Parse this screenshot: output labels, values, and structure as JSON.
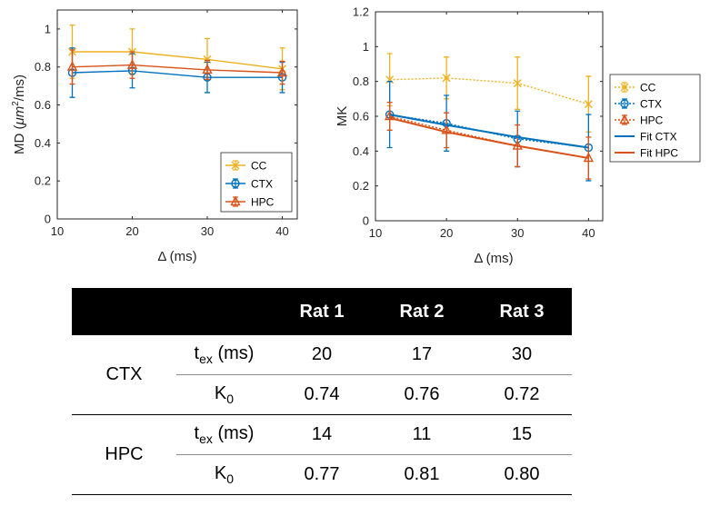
{
  "chart_data": [
    {
      "type": "line",
      "title": "",
      "xlabel": "Δ (ms)",
      "ylabel": "MD (μm²/ms)",
      "ylabel_prefix": "MD (",
      "ylabel_unit": "μm",
      "ylabel_sup": "2",
      "ylabel_suffix": "/ms)",
      "xlim": [
        10,
        42
      ],
      "ylim": [
        0,
        1.1
      ],
      "xticks": [
        10,
        20,
        30,
        40
      ],
      "yticks": [
        0,
        0.2,
        0.4,
        0.6,
        0.8,
        1
      ],
      "xtick_labels": [
        "10",
        "20",
        "30",
        "40"
      ],
      "ytick_labels": [
        "0",
        "0.2",
        "0.4",
        "0.6",
        "0.8",
        "1"
      ],
      "legend_position": "bottom-right",
      "x": [
        12,
        20,
        30,
        40
      ],
      "series": [
        {
          "name": "CC",
          "marker": "x",
          "style": "solid",
          "color": "#EDB120",
          "values": [
            0.88,
            0.88,
            0.84,
            0.79
          ],
          "err": [
            0.14,
            0.12,
            0.11,
            0.11
          ]
        },
        {
          "name": "CTX",
          "marker": "o",
          "style": "solid",
          "color": "#0072BD",
          "values": [
            0.77,
            0.78,
            0.745,
            0.745
          ],
          "err": [
            0.13,
            0.09,
            0.08,
            0.08
          ]
        },
        {
          "name": "HPC",
          "marker": "triangle",
          "style": "solid",
          "color": "#D95319",
          "values": [
            0.8,
            0.81,
            0.785,
            0.77
          ],
          "err": [
            0.09,
            0.07,
            0.05,
            0.06
          ]
        }
      ]
    },
    {
      "type": "line",
      "title": "",
      "xlabel": "Δ (ms)",
      "ylabel": "MK",
      "xlim": [
        10,
        42
      ],
      "ylim": [
        0,
        1.2
      ],
      "xticks": [
        10,
        20,
        30,
        40
      ],
      "yticks": [
        0,
        0.2,
        0.4,
        0.6,
        0.8,
        1,
        1.2
      ],
      "xtick_labels": [
        "10",
        "20",
        "30",
        "40"
      ],
      "ytick_labels": [
        "0",
        "0.2",
        "0.4",
        "0.6",
        "0.8",
        "1",
        "1.2"
      ],
      "legend_position": "outside-right",
      "x": [
        12,
        20,
        30,
        40
      ],
      "series": [
        {
          "name": "CC",
          "marker": "x",
          "style": "dotted",
          "color": "#EDB120",
          "values": [
            0.81,
            0.82,
            0.79,
            0.67
          ],
          "err": [
            0.15,
            0.12,
            0.15,
            0.16
          ]
        },
        {
          "name": "CTX",
          "marker": "o",
          "style": "dotted",
          "color": "#0072BD",
          "values": [
            0.61,
            0.56,
            0.47,
            0.42
          ],
          "err": [
            0.19,
            0.16,
            0.16,
            0.19
          ]
        },
        {
          "name": "HPC",
          "marker": "triangle",
          "style": "dotted",
          "color": "#D95319",
          "values": [
            0.6,
            0.52,
            0.43,
            0.36
          ],
          "err": [
            0.08,
            0.1,
            0.12,
            0.12
          ]
        },
        {
          "name": "Fit CTX",
          "marker": "none",
          "style": "solid",
          "color": "#0072BD",
          "values": [
            0.61,
            0.55,
            0.48,
            0.42
          ],
          "err": []
        },
        {
          "name": "Fit HPC",
          "marker": "none",
          "style": "solid",
          "color": "#D95319",
          "values": [
            0.59,
            0.51,
            0.43,
            0.36
          ],
          "err": []
        }
      ]
    },
    {
      "type": "table",
      "columns": [
        "",
        "",
        "Rat 1",
        "Rat 2",
        "Rat 3"
      ],
      "groups": [
        {
          "name": "CTX",
          "rows": [
            {
              "param_base": "t",
              "param_sub": "ex",
              "param_suffix": " (ms)",
              "values": [
                "20",
                "17",
                "30"
              ]
            },
            {
              "param_base": "K",
              "param_sub": "0",
              "param_suffix": "",
              "values": [
                "0.74",
                "0.76",
                "0.72"
              ]
            }
          ]
        },
        {
          "name": "HPC",
          "rows": [
            {
              "param_base": "t",
              "param_sub": "ex",
              "param_suffix": " (ms)",
              "values": [
                "14",
                "11",
                "15"
              ]
            },
            {
              "param_base": "K",
              "param_sub": "0",
              "param_suffix": "",
              "values": [
                "0.77",
                "0.81",
                "0.80"
              ]
            }
          ]
        }
      ]
    }
  ]
}
